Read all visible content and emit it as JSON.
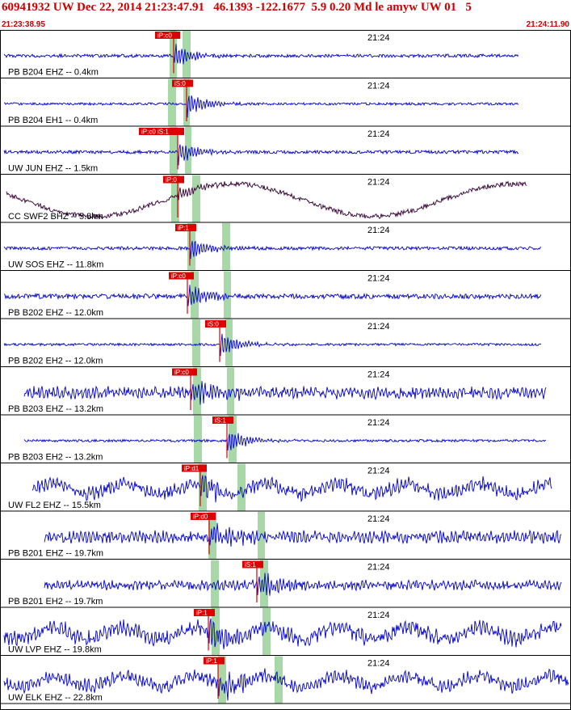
{
  "header": {
    "title": "60941932 UW Dec 22, 2014 21:23:47.91   46.1393 -122.1677  5.9 0.20 Md le amyw UW 01   5",
    "start_time": "21:23:38.95",
    "end_time": "21:24:11.90"
  },
  "colors": {
    "trace": "#0000cc",
    "trace_alt": "#330033",
    "pick_box": "#dd0000",
    "pick_window": "#a8d8a8",
    "header_text": "#cc0000"
  },
  "traces": [
    {
      "label": "PB B204 EHZ -- 0.4km",
      "time_mark": "21:24",
      "pick": "iP:c0",
      "color": "trace"
    },
    {
      "label": "PB B204 EH1 -- 0.4km",
      "time_mark": "21:24",
      "pick": "iS:0",
      "color": "trace"
    },
    {
      "label": "UW JUN EHZ -- 1.5km",
      "time_mark": "21:24",
      "pick": "iP:c0 iS:1",
      "color": "trace"
    },
    {
      "label": "CC SWF2 BHZ -- 5.8km",
      "time_mark": "21:24",
      "pick": "iP:0",
      "color": "trace_alt"
    },
    {
      "label": "UW SOS EHZ -- 11.8km",
      "time_mark": "21:24",
      "pick": "iP:1",
      "color": "trace"
    },
    {
      "label": "PB B202 EHZ -- 12.0km",
      "time_mark": "21:24",
      "pick": "iP:c0",
      "color": "trace"
    },
    {
      "label": "PB B202 EH2 -- 12.0km",
      "time_mark": "21:24",
      "pick": "iS:0",
      "color": "trace"
    },
    {
      "label": "PB B203 EHZ -- 13.2km",
      "time_mark": "21:24",
      "pick": "iP:c0",
      "color": "trace"
    },
    {
      "label": "PB B203 EH2 -- 13.2km",
      "time_mark": "21:24",
      "pick": "iS:1",
      "color": "trace"
    },
    {
      "label": "UW FL2 EHZ -- 15.5km",
      "time_mark": "21:24",
      "pick": "iP:d1",
      "color": "trace"
    },
    {
      "label": "PB B201 EHZ -- 19.7km",
      "time_mark": "21:24",
      "pick": "iP:d0",
      "color": "trace"
    },
    {
      "label": "PB B201 EH2 -- 19.7km",
      "time_mark": "21:24",
      "pick": "iS:1",
      "color": "trace"
    },
    {
      "label": "UW LVP EHZ -- 19.8km",
      "time_mark": "21:24",
      "pick": "iP:1",
      "color": "trace"
    },
    {
      "label": "UW ELK EHZ -- 22.8km",
      "time_mark": "21:24",
      "pick": "iP:1",
      "color": "trace"
    }
  ]
}
